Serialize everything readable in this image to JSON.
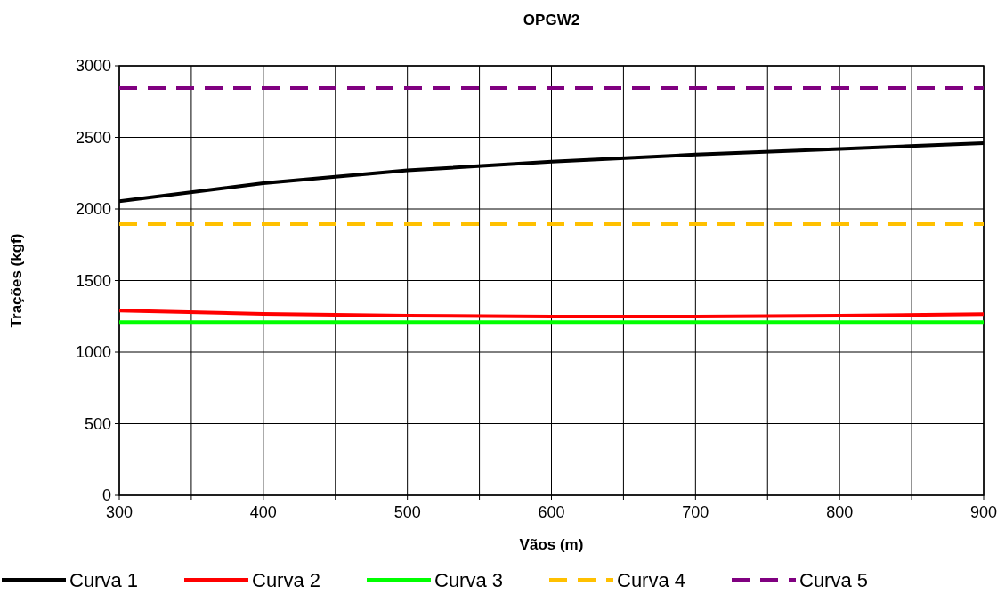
{
  "chart_data": {
    "type": "line",
    "title": "OPGW2",
    "xlabel": "Vãos (m)",
    "ylabel": "Trações (kgf)",
    "x": [
      300,
      400,
      500,
      600,
      700,
      800,
      900
    ],
    "series": [
      {
        "name": "Curva 1",
        "color": "#000000",
        "line_style": "solid",
        "values": [
          2055,
          2180,
          2270,
          2330,
          2380,
          2420,
          2460
        ]
      },
      {
        "name": "Curva 2",
        "color": "#ff0000",
        "line_style": "solid",
        "values": [
          1290,
          1267,
          1255,
          1248,
          1248,
          1255,
          1265
        ]
      },
      {
        "name": "Curva 3",
        "color": "#00ff00",
        "line_style": "solid",
        "values": [
          1210,
          1210,
          1210,
          1210,
          1210,
          1210,
          1210
        ]
      },
      {
        "name": "Curva 4",
        "color": "#ffc000",
        "line_style": "dashed",
        "values": [
          1895,
          1895,
          1895,
          1895,
          1895,
          1895,
          1895
        ]
      },
      {
        "name": "Curva 5",
        "color": "#800080",
        "line_style": "dashed",
        "values": [
          2845,
          2845,
          2845,
          2845,
          2845,
          2845,
          2845
        ]
      }
    ],
    "xlim": [
      300,
      900
    ],
    "xticks": [
      300,
      {
        "value": 350,
        "label": null
      },
      400,
      {
        "value": 450,
        "label": null
      },
      500,
      {
        "value": 550,
        "label": null
      },
      600,
      {
        "value": 650,
        "label": null
      },
      700,
      {
        "value": 750,
        "label": null
      },
      800,
      {
        "value": 850,
        "label": null
      },
      900
    ],
    "ylim": [
      0,
      3000
    ],
    "yticks": [
      0,
      500,
      1000,
      1500,
      2000,
      2500,
      3000
    ],
    "grid": true,
    "legend": "bottom",
    "marker": "none"
  }
}
